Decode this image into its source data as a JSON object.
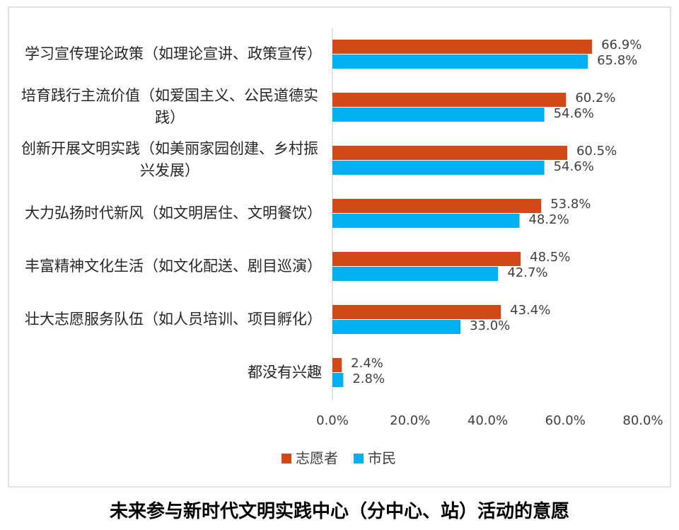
{
  "chart_data": {
    "type": "hbar",
    "title": "未来参与新时代文明实践中心（分中心、站）活动的意愿",
    "categories": [
      "学习宣传理论政策（如理论宣讲、政策宣传）",
      "培育践行主流价值（如爱国主义、公民道德实践）",
      "创新开展文明实践（如美丽家园创建、乡村振兴发展）",
      "大力弘扬时代新风（如文明居住、文明餐饮）",
      "丰富精神文化生活（如文化配送、剧目巡演）",
      "壮大志愿服务队伍（如人员培训、项目孵化）",
      "都没有兴趣"
    ],
    "series": [
      {
        "name": "志愿者",
        "color": "#d34817",
        "values": [
          66.9,
          60.2,
          60.5,
          53.8,
          48.5,
          43.4,
          2.4
        ],
        "value_labels": [
          "66.9%",
          "60.2%",
          "60.5%",
          "53.8%",
          "48.5%",
          "43.4%",
          "2.4%"
        ]
      },
      {
        "name": "市民",
        "color": "#00b0f0",
        "values": [
          65.8,
          54.6,
          54.6,
          48.2,
          42.7,
          33.0,
          2.8
        ],
        "value_labels": [
          "65.8%",
          "54.6%",
          "54.6%",
          "48.2%",
          "42.7%",
          "33.0%",
          "2.8%"
        ]
      }
    ],
    "xlim": [
      0,
      80
    ],
    "xticks": [
      {
        "value": 0,
        "label": "0.0%"
      },
      {
        "value": 20,
        "label": "20.0%"
      },
      {
        "value": 40,
        "label": "40.0%"
      },
      {
        "value": 60,
        "label": "60.0%"
      },
      {
        "value": 80,
        "label": "80.0%"
      }
    ]
  }
}
